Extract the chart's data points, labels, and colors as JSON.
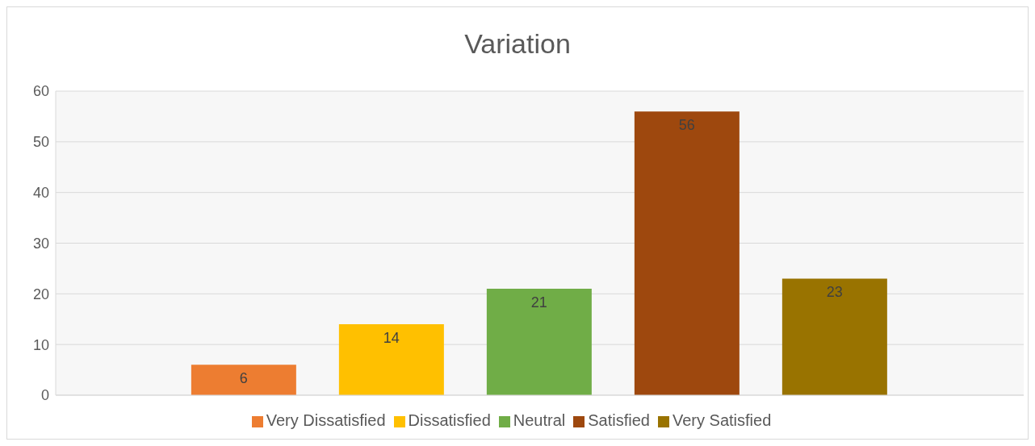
{
  "chart_data": {
    "type": "bar",
    "title": "Variation",
    "categories": [
      null
    ],
    "series": [
      {
        "name": "Very Dissatisfied",
        "color": "#ed7d31",
        "values": [
          6
        ]
      },
      {
        "name": "Dissatisfied",
        "color": "#ffc000",
        "values": [
          14
        ]
      },
      {
        "name": "Neutral",
        "color": "#70ad47",
        "values": [
          21
        ]
      },
      {
        "name": "Satisfied",
        "color": "#9e480e",
        "values": [
          56
        ]
      },
      {
        "name": "Very Satisfied",
        "color": "#997300",
        "values": [
          23
        ]
      }
    ],
    "ylim": [
      0,
      60
    ],
    "yticks": [
      0,
      10,
      20,
      30,
      40,
      50,
      60
    ],
    "grid": "y",
    "legend": "bottom",
    "data_labels": true
  }
}
